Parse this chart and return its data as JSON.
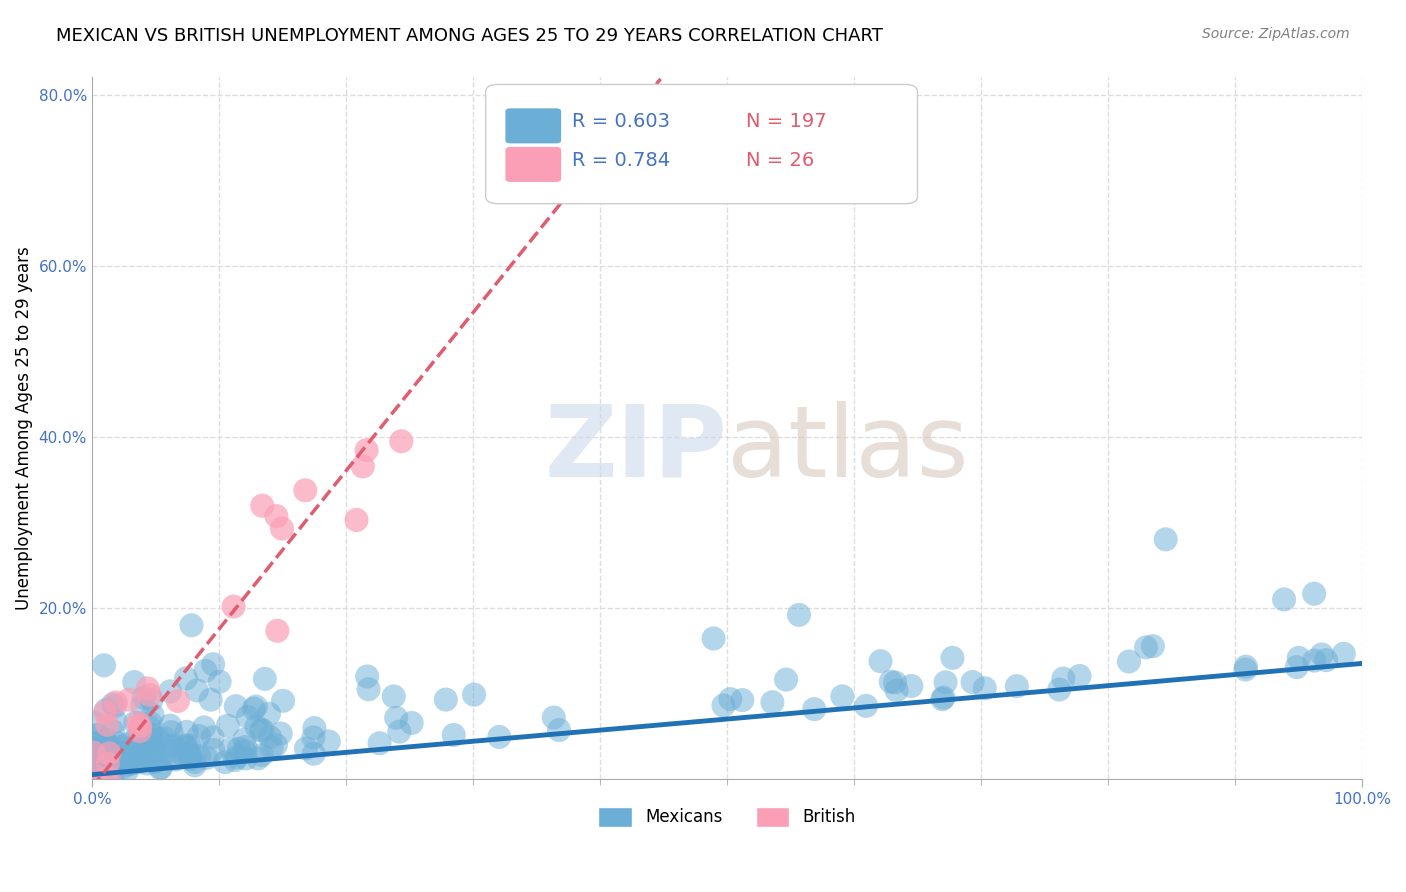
{
  "title": "MEXICAN VS BRITISH UNEMPLOYMENT AMONG AGES 25 TO 29 YEARS CORRELATION CHART",
  "source": "Source: ZipAtlas.com",
  "xlabel": "",
  "ylabel": "Unemployment Among Ages 25 to 29 years",
  "xlim": [
    0,
    1
  ],
  "ylim": [
    0,
    0.82
  ],
  "mexican_color": "#6baed6",
  "british_color": "#fa9fb5",
  "mexican_line_color": "#2171b5",
  "british_line_color": "#e05c6e",
  "legend_r_mexican": "R = 0.603",
  "legend_n_mexican": "N = 197",
  "legend_r_british": "R = 0.784",
  "legend_n_british": "N = 26",
  "r_color": "#4472c4",
  "n_color": "#e05c6e",
  "background_color": "#ffffff",
  "grid_color": "#dddddd",
  "title_fontsize": 13,
  "axis_label_fontsize": 12,
  "tick_fontsize": 11,
  "mexican_N": 197,
  "british_N": 26,
  "mexican_slope": 0.13,
  "mexican_intercept": 0.005,
  "british_slope": 1.85,
  "british_intercept": -0.01
}
